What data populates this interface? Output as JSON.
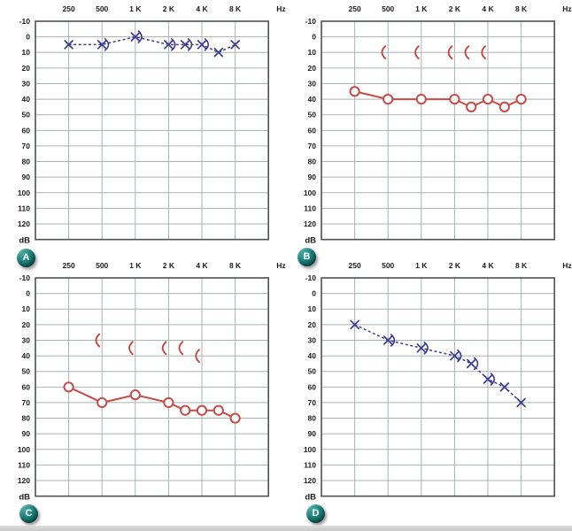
{
  "page": {
    "background": "#ffffff",
    "footer_strip_color": "#d3d3d3"
  },
  "colors": {
    "air_left_blue": "#3b3b8f",
    "air_right_red": "#c74b47",
    "grid_inner": "#a8b2b0",
    "grid_border": "#4c5250",
    "tick_label": "#1b1b1b",
    "badge_teal": "#0b5450"
  },
  "chart_data": [
    {
      "panel": "A",
      "type": "line",
      "chart_kind": "audiogram",
      "axes": {
        "x_tick_labels": [
          "250",
          "500",
          "1 K",
          "2 K",
          "4 K",
          "8 K"
        ],
        "x_unit_label": "Hz",
        "y_tick_labels": [
          "-10",
          "0",
          "10",
          "20",
          "30",
          "40",
          "50",
          "60",
          "70",
          "80",
          "90",
          "100",
          "110",
          "120"
        ],
        "y_unit_label": "dB",
        "ylim": [
          -10,
          120
        ],
        "y_inverted": true,
        "x_scale": "octave",
        "grid": true
      },
      "series": [
        {
          "name": "air-conduction-left-ear",
          "marker": "x",
          "color": "#3b3b8f",
          "line": "dashed",
          "points": [
            {
              "freq": "250",
              "db": 5
            },
            {
              "freq": "500",
              "db": 5
            },
            {
              "freq": "1K",
              "db": 0
            },
            {
              "freq": "2K",
              "db": 5
            },
            {
              "freq": "3K",
              "db": 5
            },
            {
              "freq": "4K",
              "db": 5
            },
            {
              "freq": "6K",
              "db": 10
            },
            {
              "freq": "8K",
              "db": 5
            }
          ]
        },
        {
          "name": "bone-conduction-left-ear",
          "marker": "bracket-right",
          "color": "#3b3b8f",
          "line": "none",
          "points": [
            {
              "freq": "500",
              "db": 5
            },
            {
              "freq": "1K",
              "db": 0
            },
            {
              "freq": "2K",
              "db": 5
            },
            {
              "freq": "3K",
              "db": 5
            },
            {
              "freq": "4K",
              "db": 5
            }
          ]
        }
      ]
    },
    {
      "panel": "B",
      "type": "line",
      "chart_kind": "audiogram",
      "axes": {
        "x_tick_labels": [
          "250",
          "500",
          "1 K",
          "2 K",
          "4 K",
          "8 K"
        ],
        "x_unit_label": "Hz",
        "y_tick_labels": [
          "-10",
          "0",
          "10",
          "20",
          "30",
          "40",
          "50",
          "60",
          "70",
          "80",
          "90",
          "100",
          "110",
          "120"
        ],
        "y_unit_label": "dB",
        "ylim": [
          -10,
          120
        ],
        "y_inverted": true,
        "x_scale": "octave",
        "grid": true
      },
      "series": [
        {
          "name": "air-conduction-right-ear",
          "marker": "circle",
          "color": "#c74b47",
          "line": "solid",
          "points": [
            {
              "freq": "250",
              "db": 35
            },
            {
              "freq": "500",
              "db": 40
            },
            {
              "freq": "1K",
              "db": 40
            },
            {
              "freq": "2K",
              "db": 40
            },
            {
              "freq": "3K",
              "db": 45
            },
            {
              "freq": "4K",
              "db": 40
            },
            {
              "freq": "6K",
              "db": 45
            },
            {
              "freq": "8K",
              "db": 40
            }
          ]
        },
        {
          "name": "bone-conduction-right-ear",
          "marker": "bracket-left",
          "color": "#c64540",
          "line": "none",
          "points": [
            {
              "freq": "500",
              "db": 10
            },
            {
              "freq": "1K",
              "db": 10
            },
            {
              "freq": "2K",
              "db": 10
            },
            {
              "freq": "3K",
              "db": 10
            },
            {
              "freq": "4K",
              "db": 10
            }
          ]
        }
      ]
    },
    {
      "panel": "C",
      "type": "line",
      "chart_kind": "audiogram",
      "axes": {
        "x_tick_labels": [
          "250",
          "500",
          "1 K",
          "2 K",
          "4 K",
          "8 K"
        ],
        "x_unit_label": "Hz",
        "y_tick_labels": [
          "-10",
          "0",
          "10",
          "20",
          "30",
          "40",
          "50",
          "60",
          "70",
          "80",
          "90",
          "100",
          "110",
          "120"
        ],
        "y_unit_label": "dB",
        "ylim": [
          -10,
          120
        ],
        "y_inverted": true,
        "x_scale": "octave",
        "grid": true
      },
      "series": [
        {
          "name": "air-conduction-right-ear",
          "marker": "circle",
          "color": "#c74b47",
          "line": "solid",
          "points": [
            {
              "freq": "250",
              "db": 60
            },
            {
              "freq": "500",
              "db": 70
            },
            {
              "freq": "1K",
              "db": 65
            },
            {
              "freq": "2K",
              "db": 70
            },
            {
              "freq": "3K",
              "db": 75
            },
            {
              "freq": "4K",
              "db": 75
            },
            {
              "freq": "6K",
              "db": 75
            },
            {
              "freq": "8K",
              "db": 80
            }
          ]
        },
        {
          "name": "bone-conduction-right-ear",
          "marker": "bracket-left",
          "color": "#c64540",
          "line": "none",
          "points": [
            {
              "freq": "500",
              "db": 30
            },
            {
              "freq": "1K",
              "db": 35
            },
            {
              "freq": "2K",
              "db": 35
            },
            {
              "freq": "3K",
              "db": 35
            },
            {
              "freq": "4K",
              "db": 40
            }
          ]
        }
      ]
    },
    {
      "panel": "D",
      "type": "line",
      "chart_kind": "audiogram",
      "axes": {
        "x_tick_labels": [
          "250",
          "500",
          "1 K",
          "2 K",
          "4 K",
          "8 K"
        ],
        "x_unit_label": "Hz",
        "y_tick_labels": [
          "-10",
          "0",
          "10",
          "20",
          "30",
          "40",
          "50",
          "60",
          "70",
          "80",
          "90",
          "100",
          "110",
          "120"
        ],
        "y_unit_label": "dB",
        "ylim": [
          -10,
          120
        ],
        "y_inverted": true,
        "x_scale": "octave",
        "grid": true
      },
      "series": [
        {
          "name": "air-conduction-left-ear",
          "marker": "x",
          "color": "#3b3b8f",
          "line": "dashed",
          "points": [
            {
              "freq": "250",
              "db": 20
            },
            {
              "freq": "500",
              "db": 30
            },
            {
              "freq": "1K",
              "db": 35
            },
            {
              "freq": "2K",
              "db": 40
            },
            {
              "freq": "3K",
              "db": 45
            },
            {
              "freq": "4K",
              "db": 55
            },
            {
              "freq": "6K",
              "db": 60
            },
            {
              "freq": "8K",
              "db": 70
            }
          ]
        },
        {
          "name": "bone-conduction-left-ear",
          "marker": "bracket-right",
          "color": "#3b3b8f",
          "line": "none",
          "points": [
            {
              "freq": "500",
              "db": 30
            },
            {
              "freq": "1K",
              "db": 35
            },
            {
              "freq": "2K",
              "db": 40
            },
            {
              "freq": "3K",
              "db": 45
            },
            {
              "freq": "4K",
              "db": 55
            }
          ]
        }
      ]
    }
  ]
}
